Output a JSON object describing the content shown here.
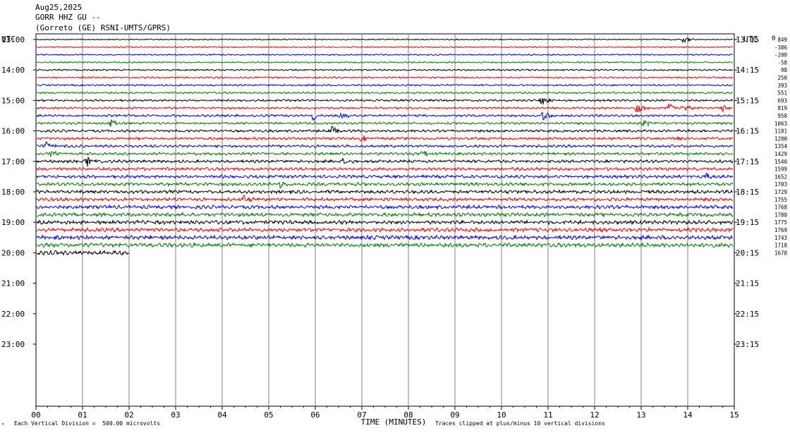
{
  "header": {
    "date": "Aug25,2025",
    "station": "GORR HHZ GU --",
    "location": "(Gorreto (GE) RSNI-UMTS/GPRS)"
  },
  "utc_left": "UTC",
  "utc_right": "UTC",
  "chart_data": {
    "type": "line",
    "title": "",
    "xlabel": "TIME (MINUTES)",
    "xlim": [
      0,
      15
    ],
    "x_ticks": [
      "00",
      "01",
      "02",
      "03",
      "04",
      "05",
      "06",
      "07",
      "08",
      "09",
      "10",
      "11",
      "12",
      "13",
      "14",
      "15"
    ],
    "left_time_labels": [
      "13:00",
      "14:00",
      "15:00",
      "16:00",
      "17:00",
      "18:00",
      "19:00",
      "20:00",
      "21:00",
      "22:00",
      "23:00"
    ],
    "right_time_labels": [
      "13:15",
      "14:15",
      "15:15",
      "16:15",
      "17:15",
      "18:15",
      "19:15",
      "20:15",
      "21:15",
      "22:15",
      "23:15"
    ],
    "trace_offsets": [
      "849",
      "-386",
      "-208",
      "-58",
      "98",
      "250",
      "393",
      "551",
      "693",
      "819",
      "958",
      "1063",
      "1181",
      "1280",
      "1354",
      "1429",
      "1540",
      "1599",
      "1652",
      "1703",
      "1729",
      "1755",
      "1768",
      "1788",
      "1775",
      "1769",
      "1743",
      "1718",
      "1678"
    ],
    "trace_colors": [
      "#000000",
      "#ff0000",
      "#0000ff",
      "#008000"
    ],
    "grid": true,
    "clipped_value": "0",
    "events": [
      {
        "trace": 0,
        "minute": 13.9,
        "amp": 5
      },
      {
        "trace": 8,
        "minute": 10.85,
        "amp": 8
      },
      {
        "trace": 9,
        "minute": 12.9,
        "amp": 11
      },
      {
        "trace": 9,
        "minute": 13.6,
        "amp": 8
      },
      {
        "trace": 9,
        "minute": 13.9,
        "amp": 7
      },
      {
        "trace": 9,
        "minute": 14.75,
        "amp": 6
      },
      {
        "trace": 10,
        "minute": 5.95,
        "amp": 8
      },
      {
        "trace": 10,
        "minute": 6.55,
        "amp": 5
      },
      {
        "trace": 10,
        "minute": 10.9,
        "amp": 8
      },
      {
        "trace": 11,
        "minute": 1.6,
        "amp": 6
      },
      {
        "trace": 11,
        "minute": 13.05,
        "amp": 6
      },
      {
        "trace": 12,
        "minute": 6.35,
        "amp": 7
      },
      {
        "trace": 13,
        "minute": 7.0,
        "amp": 7
      },
      {
        "trace": 13,
        "minute": 13.65,
        "amp": 5
      },
      {
        "trace": 14,
        "minute": 0.2,
        "amp": 7
      },
      {
        "trace": 15,
        "minute": 0.3,
        "amp": 6
      },
      {
        "trace": 15,
        "minute": 8.3,
        "amp": 5
      },
      {
        "trace": 16,
        "minute": 1.1,
        "amp": 7
      },
      {
        "trace": 16,
        "minute": 6.6,
        "amp": 5
      },
      {
        "trace": 18,
        "minute": 14.4,
        "amp": 7
      },
      {
        "trace": 19,
        "minute": 5.25,
        "amp": 6
      },
      {
        "trace": 21,
        "minute": 4.45,
        "amp": 5
      }
    ],
    "last_trace_end_minute": 2.0
  },
  "footer": {
    "division_note": "Each Vertical Division =  500.00 microvolts",
    "clip_note": "Traces clipped at plus/minus 10 vertical divisions",
    "corner_mark": "ᴹ"
  }
}
